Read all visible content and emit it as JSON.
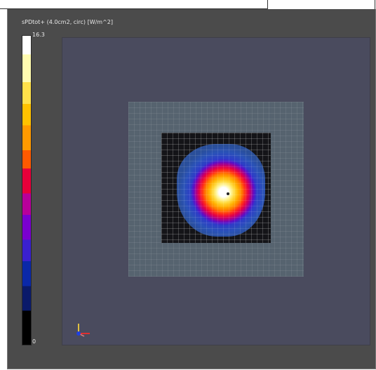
{
  "viewer": {
    "title": "sPDtot+ (4.0cm2, circ) [W/m^2]"
  },
  "colorbar": {
    "max_label": "16.3",
    "min_label": "0",
    "max_value": 16.3,
    "min_value": 0,
    "colors": [
      "#ffffff",
      "#fffbb0",
      "#ffe14a",
      "#ffc200",
      "#ff9a00",
      "#ff5a00",
      "#e8003a",
      "#b8009a",
      "#7a00d0",
      "#3a20d0",
      "#0a28a8",
      "#0a1a6a",
      "#000000"
    ]
  },
  "scene": {
    "background_color": "#4a4b5e",
    "substrate_color": "#56636f",
    "field_background": "#141418"
  },
  "axes_icon": {
    "x_color": "#e03030",
    "y_color": "#e0c040",
    "z_color": "#2040e0"
  }
}
